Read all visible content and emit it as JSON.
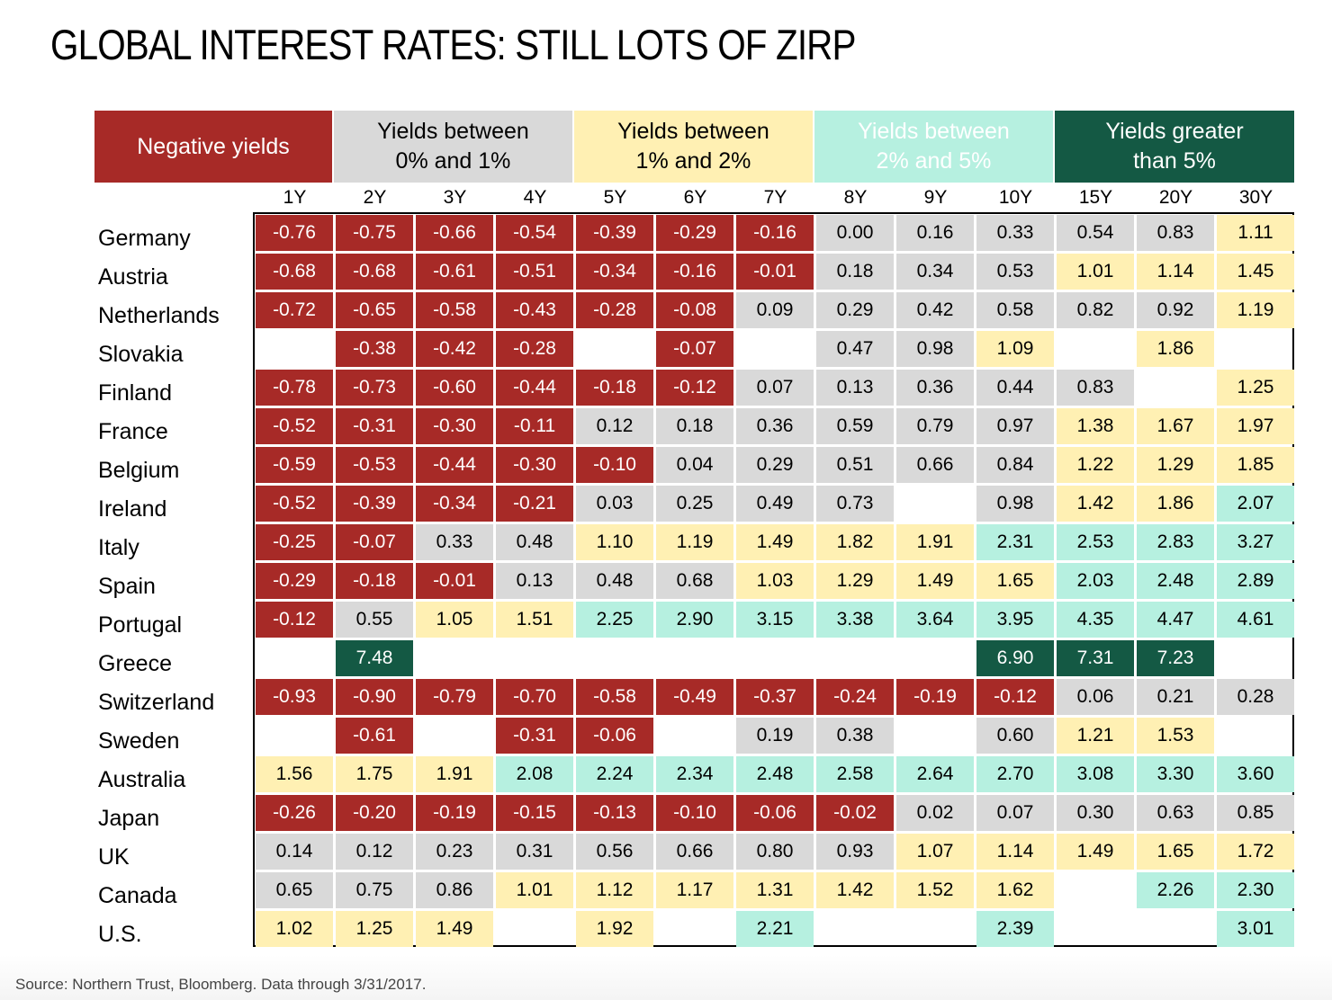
{
  "chart_data": {
    "type": "heatmap",
    "title": "GLOBAL INTEREST RATES: STILL LOTS OF ZIRP",
    "source": "Source: Northern Trust, Bloomberg. Data through 3/31/2017.",
    "legend": [
      {
        "key": "neg",
        "label": "Negative yields",
        "bg": "#A72A27",
        "fg": "#FFFFFF"
      },
      {
        "key": "z1",
        "label": "Yields between\n0% and 1%",
        "bg": "#D9D9D9",
        "fg": "#000000"
      },
      {
        "key": "o2",
        "label": "Yields between\n1% and 2%",
        "bg": "#FFF0B3",
        "fg": "#000000"
      },
      {
        "key": "t5",
        "label": "Yields between\n2% and 5%",
        "bg": "#B6F0E0",
        "fg": "#FFFFFF"
      },
      {
        "key": "g5",
        "label": "Yields greater\nthan 5%",
        "bg": "#145944",
        "fg": "#FFFFFF"
      }
    ],
    "columns": [
      "1Y",
      "2Y",
      "3Y",
      "4Y",
      "5Y",
      "6Y",
      "7Y",
      "8Y",
      "9Y",
      "10Y",
      "15Y",
      "20Y",
      "30Y"
    ],
    "rows": [
      {
        "country": "Germany",
        "values": [
          "-0.76",
          "-0.75",
          "-0.66",
          "-0.54",
          "-0.39",
          "-0.29",
          "-0.16",
          "0.00",
          "0.16",
          "0.33",
          "0.54",
          "0.83",
          "1.11"
        ]
      },
      {
        "country": "Austria",
        "values": [
          "-0.68",
          "-0.68",
          "-0.61",
          "-0.51",
          "-0.34",
          "-0.16",
          "-0.01",
          "0.18",
          "0.34",
          "0.53",
          "1.01",
          "1.14",
          "1.45"
        ]
      },
      {
        "country": "Netherlands",
        "values": [
          "-0.72",
          "-0.65",
          "-0.58",
          "-0.43",
          "-0.28",
          "-0.08",
          "0.09",
          "0.29",
          "0.42",
          "0.58",
          "0.82",
          "0.92",
          "1.19"
        ]
      },
      {
        "country": "Slovakia",
        "values": [
          null,
          "-0.38",
          "-0.42",
          "-0.28",
          null,
          "-0.07",
          null,
          "0.47",
          "0.98",
          "1.09",
          null,
          "1.86",
          null
        ]
      },
      {
        "country": "Finland",
        "values": [
          "-0.78",
          "-0.73",
          "-0.60",
          "-0.44",
          "-0.18",
          "-0.12",
          "0.07",
          "0.13",
          "0.36",
          "0.44",
          "0.83",
          null,
          "1.25"
        ]
      },
      {
        "country": "France",
        "values": [
          "-0.52",
          "-0.31",
          "-0.30",
          "-0.11",
          "0.12",
          "0.18",
          "0.36",
          "0.59",
          "0.79",
          "0.97",
          "1.38",
          "1.67",
          "1.97"
        ]
      },
      {
        "country": "Belgium",
        "values": [
          "-0.59",
          "-0.53",
          "-0.44",
          "-0.30",
          "-0.10",
          "0.04",
          "0.29",
          "0.51",
          "0.66",
          "0.84",
          "1.22",
          "1.29",
          "1.85"
        ]
      },
      {
        "country": "Ireland",
        "values": [
          "-0.52",
          "-0.39",
          "-0.34",
          "-0.21",
          "0.03",
          "0.25",
          "0.49",
          "0.73",
          null,
          "0.98",
          "1.42",
          "1.86",
          "2.07"
        ]
      },
      {
        "country": "Italy",
        "values": [
          "-0.25",
          "-0.07",
          "0.33",
          "0.48",
          "1.10",
          "1.19",
          "1.49",
          "1.82",
          "1.91",
          "2.31",
          "2.53",
          "2.83",
          "3.27"
        ]
      },
      {
        "country": "Spain",
        "values": [
          "-0.29",
          "-0.18",
          "-0.01",
          "0.13",
          "0.48",
          "0.68",
          "1.03",
          "1.29",
          "1.49",
          "1.65",
          "2.03",
          "2.48",
          "2.89"
        ]
      },
      {
        "country": "Portugal",
        "values": [
          "-0.12",
          "0.55",
          "1.05",
          "1.51",
          "2.25",
          "2.90",
          "3.15",
          "3.38",
          "3.64",
          "3.95",
          "4.35",
          "4.47",
          "4.61"
        ]
      },
      {
        "country": "Greece",
        "values": [
          null,
          "7.48",
          null,
          null,
          null,
          null,
          null,
          null,
          null,
          "6.90",
          "7.31",
          "7.23",
          null
        ]
      },
      {
        "country": "Switzerland",
        "values": [
          "-0.93",
          "-0.90",
          "-0.79",
          "-0.70",
          "-0.58",
          "-0.49",
          "-0.37",
          "-0.24",
          "-0.19",
          "-0.12",
          "0.06",
          "0.21",
          "0.28"
        ]
      },
      {
        "country": "Sweden",
        "values": [
          null,
          "-0.61",
          null,
          "-0.31",
          "-0.06",
          null,
          "0.19",
          "0.38",
          null,
          "0.60",
          "1.21",
          "1.53",
          null
        ]
      },
      {
        "country": "Australia",
        "values": [
          "1.56",
          "1.75",
          "1.91",
          "2.08",
          "2.24",
          "2.34",
          "2.48",
          "2.58",
          "2.64",
          "2.70",
          "3.08",
          "3.30",
          "3.60"
        ]
      },
      {
        "country": "Japan",
        "values": [
          "-0.26",
          "-0.20",
          "-0.19",
          "-0.15",
          "-0.13",
          "-0.10",
          "-0.06",
          "-0.02",
          "0.02",
          "0.07",
          "0.30",
          "0.63",
          "0.85"
        ]
      },
      {
        "country": "UK",
        "values": [
          "0.14",
          "0.12",
          "0.23",
          "0.31",
          "0.56",
          "0.66",
          "0.80",
          "0.93",
          "1.07",
          "1.14",
          "1.49",
          "1.65",
          "1.72"
        ]
      },
      {
        "country": "Canada",
        "values": [
          "0.65",
          "0.75",
          "0.86",
          "1.01",
          "1.12",
          "1.17",
          "1.31",
          "1.42",
          "1.52",
          "1.62",
          null,
          "2.26",
          "2.30"
        ]
      },
      {
        "country": "U.S.",
        "values": [
          "1.02",
          "1.25",
          "1.49",
          null,
          "1.92",
          null,
          "2.21",
          null,
          null,
          "2.39",
          null,
          null,
          "3.01"
        ]
      }
    ]
  }
}
